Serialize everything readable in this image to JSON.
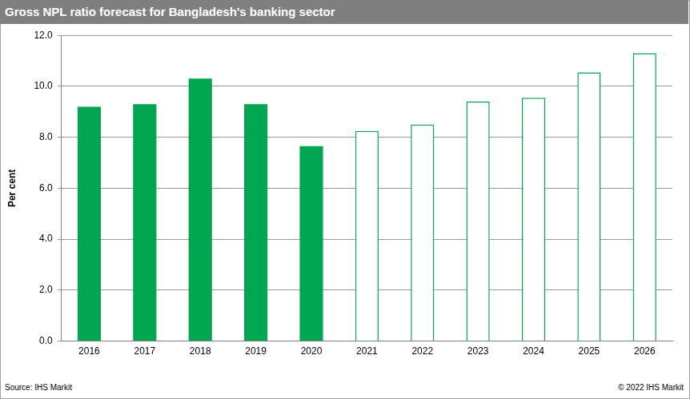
{
  "chart_data": {
    "type": "bar",
    "title": "Gross NPL ratio forecast for Bangladesh's banking sector",
    "y_label": "Per cent",
    "annotations": [
      "Source: IHS Markit",
      "© 2022 IHS Markit"
    ],
    "categories": [
      "2016",
      "2017",
      "2018",
      "2019",
      "2020",
      "2021",
      "2022",
      "2023",
      "2024",
      "2025",
      "2026"
    ],
    "series": [
      {
        "color": "#00a650",
        "marker": "filled",
        "values": [
          9.2,
          9.3,
          10.3,
          9.3,
          7.65,
          null,
          null,
          null,
          null,
          null,
          null
        ]
      },
      {
        "color": "#00a650",
        "marker": "hollow",
        "values": [
          null,
          null,
          null,
          null,
          null,
          8.25,
          8.5,
          9.4,
          9.55,
          10.55,
          11.3
        ]
      }
    ],
    "ylim": [
      0,
      12
    ],
    "yticks": [
      {
        "value": 0,
        "label": "0.0"
      },
      {
        "value": 2,
        "label": "2.0"
      },
      {
        "value": 4,
        "label": "4.0"
      },
      {
        "value": 6,
        "label": "6.0"
      },
      {
        "value": 8,
        "label": "8.0"
      },
      {
        "value": 10,
        "label": "10.0"
      },
      {
        "value": 12,
        "label": "12.0"
      }
    ],
    "grid": true
  }
}
